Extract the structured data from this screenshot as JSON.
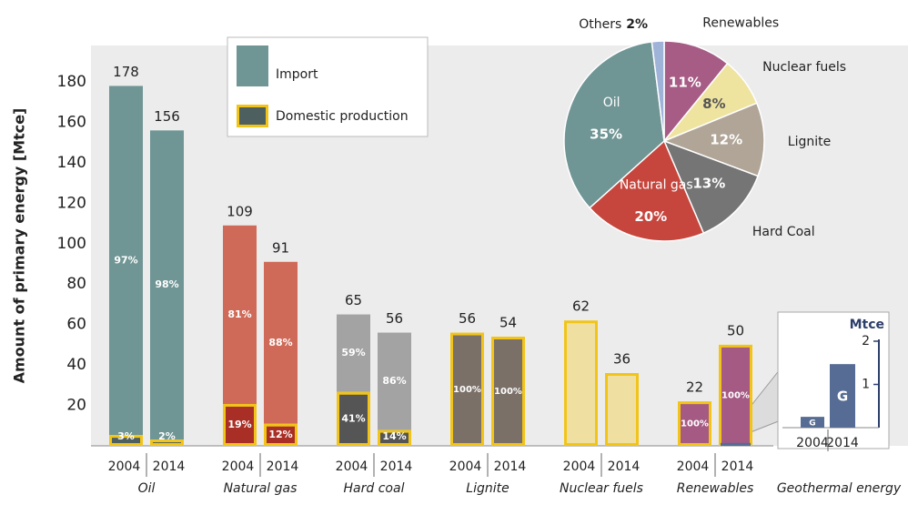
{
  "chart_data": [
    {
      "type": "grouped_stacked_bar",
      "ylabel": "Amount of primary energy [Mtce]",
      "ylim": [
        0,
        198
      ],
      "yticks": [
        20,
        40,
        60,
        80,
        100,
        120,
        140,
        160,
        180
      ],
      "years": [
        "2004",
        "2014"
      ],
      "legend": [
        {
          "name": "Import",
          "color": "#6f9594"
        },
        {
          "name": "Domestic production",
          "color": "#4d5f5f"
        }
      ],
      "border_color": "#f2c418",
      "groups": [
        {
          "name": "Oil",
          "color": "#6f9594",
          "domestic_color": "#4d5f5f",
          "values": [
            178,
            156
          ],
          "import_share": [
            97,
            98
          ],
          "import_labels": [
            "97%",
            "98%"
          ],
          "domestic_share": [
            3,
            2
          ],
          "domestic_labels": [
            "3%",
            "2%"
          ]
        },
        {
          "name": "Natural gas",
          "color": "#cf6a58",
          "domestic_color": "#a92e25",
          "values": [
            109,
            91
          ],
          "import_share": [
            81,
            88
          ],
          "import_labels": [
            "81%",
            "88%"
          ],
          "domestic_share": [
            19,
            12
          ],
          "domestic_labels": [
            "19%",
            "12%"
          ]
        },
        {
          "name": "Hard coal",
          "color": "#a3a3a3",
          "domestic_color": "#555555",
          "values": [
            65,
            56
          ],
          "import_share": [
            59,
            86
          ],
          "import_labels": [
            "59%",
            "86%"
          ],
          "domestic_share": [
            41,
            14
          ],
          "domestic_labels": [
            "41%",
            "14%"
          ]
        },
        {
          "name": "Lignite",
          "color": "#7a7068",
          "domestic_color": "#7a7068",
          "values": [
            56,
            54
          ],
          "import_share": [
            null,
            null
          ],
          "import_labels": [
            null,
            null
          ],
          "domestic_share": [
            100,
            100
          ],
          "domestic_labels": [
            "100%",
            "100%"
          ]
        },
        {
          "name": "Nuclear fuels",
          "color": "#efe0a2",
          "domestic_color": "#efe0a2",
          "values": [
            62,
            36
          ],
          "import_share": [
            null,
            null
          ],
          "import_labels": [
            null,
            null
          ],
          "domestic_share": [
            null,
            null
          ],
          "domestic_labels": [
            null,
            null
          ]
        },
        {
          "name": "Renewables",
          "color": "#a55a84",
          "domestic_color": "#a55a84",
          "values": [
            22,
            50
          ],
          "import_share": [
            null,
            null
          ],
          "import_labels": [
            null,
            null
          ],
          "domestic_share": [
            100,
            100
          ],
          "domestic_labels": [
            "100%",
            "100%"
          ]
        }
      ]
    },
    {
      "type": "pie",
      "categories": [
        "Renewables",
        "Nuclear fuels",
        "Lignite",
        "Hard Coal",
        "Natural gas",
        "Oil",
        "Others"
      ],
      "values": [
        11,
        8,
        12,
        13,
        20,
        35,
        2
      ],
      "value_labels": [
        "11%",
        "8%",
        "12%",
        "13%",
        "20%",
        "35%",
        "2%"
      ],
      "colors": [
        "#a65c85",
        "#efe3a0",
        "#b0a597",
        "#757575",
        "#c6463d",
        "#6f9594",
        "#9fb3d9"
      ],
      "value_label_colors": [
        "#ffffff",
        "#555555",
        "#ffffff",
        "#ffffff",
        "#ffffff",
        "#ffffff",
        "#333333"
      ]
    },
    {
      "type": "bar",
      "title": "Geothermal energy",
      "y_unit": "Mtce",
      "categories": [
        "2004",
        "2014"
      ],
      "values": [
        0.25,
        1.47
      ],
      "bar_label": "G",
      "color": "#566c94",
      "ylim": [
        0,
        2
      ],
      "yticks": [
        1,
        2
      ]
    }
  ]
}
